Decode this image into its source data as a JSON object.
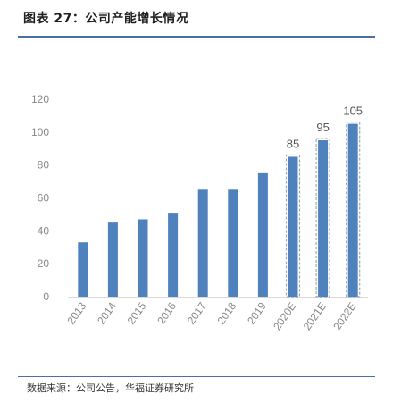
{
  "title": "图表 27：公司产能增长情况",
  "source": "数据来源：公司公告，华福证券研究所",
  "colors": {
    "bar": "#4f81bd",
    "forecast_border": "#9aa8bb",
    "axis_text": "#888888",
    "rule": "#4a6fa5"
  },
  "chart_data": {
    "type": "bar",
    "categories": [
      "2013",
      "2014",
      "2015",
      "2016",
      "2017",
      "2018",
      "2019",
      "2020E",
      "2021E",
      "2022E"
    ],
    "values": [
      33,
      45,
      47,
      51,
      65,
      65,
      75,
      85,
      95,
      105
    ],
    "forecast": [
      false,
      false,
      false,
      false,
      false,
      false,
      false,
      true,
      true,
      true
    ],
    "data_labels": [
      "",
      "",
      "",
      "",
      "",
      "",
      "",
      "85",
      "95",
      "105"
    ],
    "yticks": [
      "0",
      "20",
      "40",
      "60",
      "80",
      "100",
      "120"
    ],
    "ylim": [
      0,
      120
    ],
    "grid": false,
    "legend": "none"
  }
}
